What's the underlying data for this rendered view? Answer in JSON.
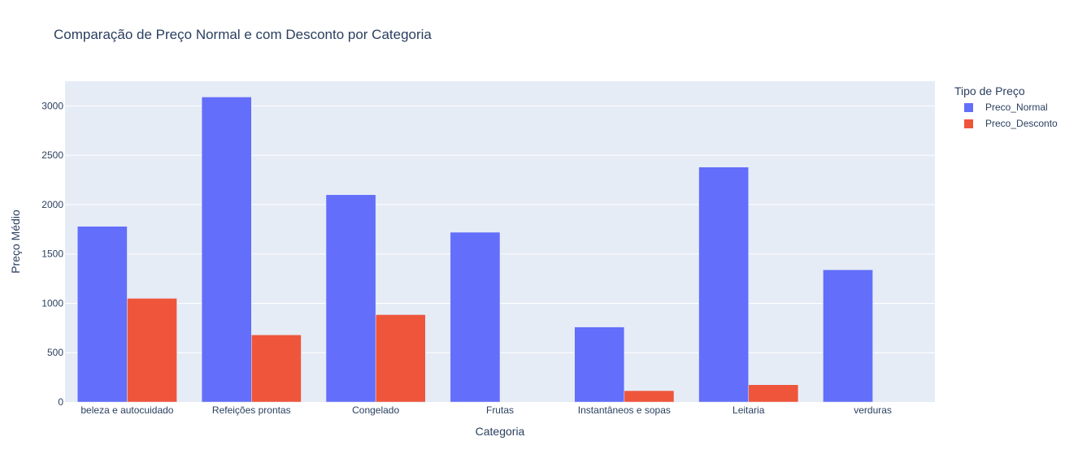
{
  "chart_data": {
    "type": "bar",
    "title": "Comparação de Preço Normal e com Desconto por Categoria",
    "xlabel": "Categoria",
    "ylabel": "Preço Médio",
    "categories": [
      "beleza e autocuidado",
      "Refeições prontas",
      "Congelado",
      "Frutas",
      "Instantâneos e sopas",
      "Leitaria",
      "verduras"
    ],
    "series": [
      {
        "name": "Preco_Normal",
        "color": "#636efa",
        "values": [
          1780,
          3090,
          2100,
          1720,
          760,
          2380,
          1340
        ]
      },
      {
        "name": "Preco_Desconto",
        "color": "#ef553b",
        "values": [
          1050,
          680,
          885,
          0,
          115,
          175,
          0
        ]
      }
    ],
    "ylim": [
      0,
      3250
    ],
    "yticks": [
      0,
      500,
      1000,
      1500,
      2000,
      2500,
      3000
    ],
    "grid": true,
    "barmode": "group",
    "legend": {
      "title": "Tipo de Preço",
      "position": "top-right"
    },
    "plot_bg": "#e5ecf6",
    "paper_bg": "#ffffff"
  }
}
